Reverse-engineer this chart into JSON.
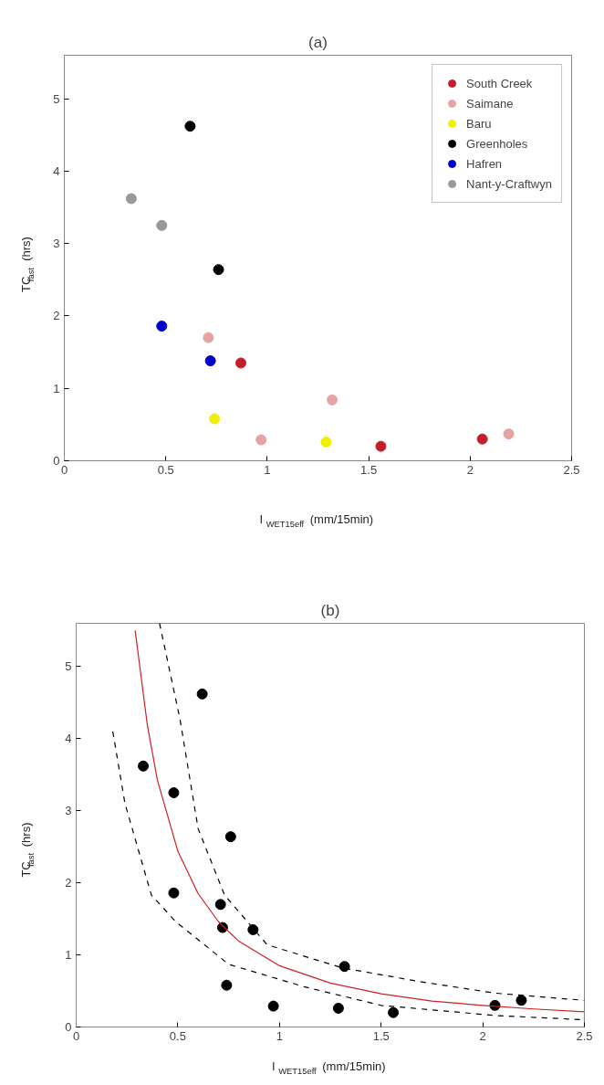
{
  "chart_data": [
    {
      "type": "scatter",
      "title": "(a)",
      "xlabel": "I$_{WET15eff}$ (mm/15min)",
      "ylabel": "TC$_{fast}$ (hrs)",
      "xlim": [
        0,
        2.5
      ],
      "ylim": [
        0,
        5.6
      ],
      "xticks": [
        0,
        0.5,
        1,
        1.5,
        2,
        2.5
      ],
      "yticks": [
        0,
        1,
        2,
        3,
        4,
        5
      ],
      "marker": "circle",
      "legend": "top right",
      "series": [
        {
          "name": "South Creek",
          "color": "#c41e2a",
          "x": [
            0.87,
            1.56,
            2.06
          ],
          "values": [
            1.35,
            0.2,
            0.3
          ]
        },
        {
          "name": "Saimane",
          "color": "#e6a3a3",
          "x": [
            0.71,
            1.32,
            0.97,
            2.19
          ],
          "values": [
            1.7,
            0.84,
            0.29,
            0.37
          ]
        },
        {
          "name": "Baru",
          "color": "#f0f000",
          "x": [
            0.74,
            1.29
          ],
          "values": [
            0.58,
            0.26
          ]
        },
        {
          "name": "Greenholes",
          "color": "#000000",
          "x": [
            0.62,
            0.76
          ],
          "values": [
            4.62,
            2.64
          ]
        },
        {
          "name": "Hafren",
          "color": "#0000c8",
          "x": [
            0.48,
            0.72
          ],
          "values": [
            1.86,
            1.38
          ]
        },
        {
          "name": "Nant-y-Craftwyn",
          "color": "#999999",
          "x": [
            0.33,
            0.48
          ],
          "values": [
            3.62,
            3.25
          ]
        }
      ]
    },
    {
      "type": "scatter",
      "title": "(b)",
      "xlabel": "I$_{WET15eff}$ (mm/15min)",
      "ylabel": "TC$_{fast}$ (hrs)",
      "xlim": [
        0,
        2.5
      ],
      "ylim": [
        0,
        5.6
      ],
      "xticks": [
        0,
        0.5,
        1,
        1.5,
        2,
        2.5
      ],
      "yticks": [
        0,
        1,
        2,
        3,
        4,
        5
      ],
      "series": [
        {
          "type": "scatter",
          "marker": "circle",
          "color": "#000000",
          "x": [
            0.87,
            1.56,
            2.06,
            0.71,
            1.32,
            0.97,
            2.19,
            0.74,
            1.29,
            0.62,
            0.76,
            0.48,
            0.72,
            0.33,
            0.48
          ],
          "values": [
            1.35,
            0.2,
            0.3,
            1.7,
            0.84,
            0.29,
            0.37,
            0.58,
            0.26,
            4.62,
            2.64,
            1.86,
            1.38,
            3.62,
            3.25
          ]
        },
        {
          "type": "line",
          "color": "#000000",
          "line_style": "dashed",
          "x": [
            0.41,
            0.51,
            0.6,
            0.73,
            0.94,
            1.31,
            1.69,
            2.06,
            2.5
          ],
          "values": [
            5.6,
            4.28,
            2.75,
            1.83,
            1.14,
            0.82,
            0.63,
            0.47,
            0.37
          ]
        },
        {
          "type": "line",
          "color": "#d02020",
          "line_style": "solid",
          "x": [
            0.29,
            0.35,
            0.4,
            0.5,
            0.6,
            0.7,
            0.8,
            1.0,
            1.25,
            1.5,
            1.75,
            2.0,
            2.25,
            2.5
          ],
          "values": [
            5.5,
            4.19,
            3.42,
            2.44,
            1.85,
            1.46,
            1.19,
            0.85,
            0.61,
            0.46,
            0.36,
            0.3,
            0.25,
            0.21
          ]
        },
        {
          "type": "line",
          "color": "#000000",
          "line_style": "dashed",
          "x": [
            0.18,
            0.24,
            0.37,
            0.49,
            0.75,
            1.12,
            1.5,
            2.06,
            2.5
          ],
          "values": [
            4.1,
            3.1,
            1.83,
            1.46,
            0.87,
            0.56,
            0.3,
            0.16,
            0.1
          ]
        }
      ]
    }
  ]
}
